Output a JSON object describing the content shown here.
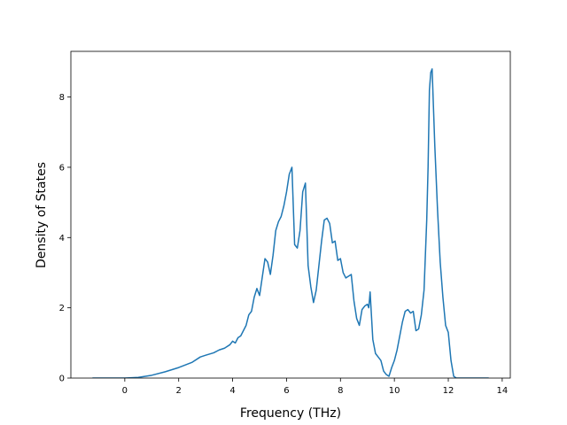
{
  "chart_data": {
    "type": "line",
    "title": "",
    "xlabel": "Frequency (THz)",
    "ylabel": "Density of States",
    "xlim": [
      -2.0,
      14.3
    ],
    "ylim": [
      0,
      9.3
    ],
    "xticks": [
      0,
      2,
      4,
      6,
      8,
      10,
      12,
      14
    ],
    "yticks": [
      0,
      2,
      4,
      6,
      8
    ],
    "grid": false,
    "legend": "none",
    "series": [
      {
        "color": "#1f77b4",
        "x": [
          -1.2,
          0.0,
          0.5,
          1.0,
          1.5,
          2.0,
          2.5,
          2.8,
          3.0,
          3.3,
          3.5,
          3.7,
          3.9,
          4.0,
          4.1,
          4.2,
          4.3,
          4.5,
          4.6,
          4.7,
          4.8,
          4.9,
          5.0,
          5.2,
          5.3,
          5.4,
          5.5,
          5.6,
          5.7,
          5.8,
          5.9,
          6.0,
          6.1,
          6.2,
          6.3,
          6.4,
          6.5,
          6.6,
          6.7,
          6.8,
          6.9,
          7.0,
          7.1,
          7.2,
          7.3,
          7.4,
          7.5,
          7.6,
          7.7,
          7.8,
          7.9,
          8.0,
          8.1,
          8.2,
          8.4,
          8.5,
          8.6,
          8.7,
          8.8,
          8.9,
          9.0,
          9.05,
          9.1,
          9.2,
          9.3,
          9.4,
          9.5,
          9.6,
          9.7,
          9.8,
          9.9,
          10.0,
          10.1,
          10.2,
          10.3,
          10.4,
          10.5,
          10.6,
          10.7,
          10.8,
          10.9,
          11.0,
          11.1,
          11.2,
          11.25,
          11.3,
          11.35,
          11.4,
          11.5,
          11.6,
          11.7,
          11.8,
          11.9,
          12.0,
          12.1,
          12.2,
          12.3,
          12.4,
          13.5
        ],
        "y": [
          0,
          0.0,
          0.02,
          0.08,
          0.18,
          0.3,
          0.45,
          0.6,
          0.65,
          0.72,
          0.8,
          0.85,
          0.95,
          1.05,
          1.0,
          1.15,
          1.2,
          1.5,
          1.8,
          1.9,
          2.3,
          2.55,
          2.35,
          3.4,
          3.3,
          2.95,
          3.5,
          4.2,
          4.45,
          4.6,
          4.9,
          5.3,
          5.8,
          6.0,
          3.8,
          3.7,
          4.2,
          5.3,
          5.55,
          3.2,
          2.6,
          2.15,
          2.5,
          3.2,
          3.9,
          4.5,
          4.55,
          4.4,
          3.85,
          3.9,
          3.35,
          3.4,
          3.0,
          2.85,
          2.95,
          2.2,
          1.7,
          1.5,
          1.95,
          2.05,
          2.1,
          2.0,
          2.45,
          1.1,
          0.7,
          0.6,
          0.5,
          0.2,
          0.1,
          0.05,
          0.3,
          0.5,
          0.8,
          1.2,
          1.6,
          1.9,
          1.95,
          1.85,
          1.9,
          1.35,
          1.4,
          1.8,
          2.5,
          4.5,
          6.0,
          8.2,
          8.7,
          8.8,
          6.6,
          4.8,
          3.3,
          2.3,
          1.5,
          1.3,
          0.5,
          0.05,
          0,
          0,
          0
        ]
      }
    ]
  }
}
